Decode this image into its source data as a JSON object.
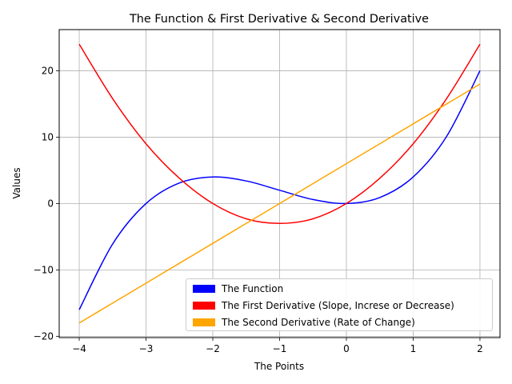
{
  "chart_data": {
    "type": "line",
    "title": "The Function & First Derivative & Second Derivative",
    "xlabel": "The Points",
    "ylabel": "Values",
    "xlim": [
      -4.3,
      2.3
    ],
    "ylim": [
      -20.2,
      26.2
    ],
    "x_ticks": [
      -4,
      -3,
      -2,
      -1,
      0,
      1,
      2
    ],
    "x_tick_labels": [
      "−4",
      "−3",
      "−2",
      "−1",
      "0",
      "1",
      "2"
    ],
    "y_ticks": [
      -20,
      -10,
      0,
      10,
      20
    ],
    "y_tick_labels": [
      "−20",
      "−10",
      "0",
      "10",
      "20"
    ],
    "grid": true,
    "legend_position": "lower-right",
    "x": [
      -4,
      -3.5,
      -3,
      -2.5,
      -2,
      -1.5,
      -1,
      -0.5,
      0,
      0.5,
      1,
      1.5,
      2
    ],
    "series": [
      {
        "name": "The Function",
        "color": "#0000ff",
        "values": [
          -16,
          -6.1,
          0,
          3.1,
          4,
          3.4,
          2,
          0.6,
          0,
          0.9,
          4,
          10.1,
          20
        ]
      },
      {
        "name": "The First Derivative (Slope, Increse or Decrease)",
        "color": "#ff0000",
        "values": [
          24,
          15.8,
          9,
          3.8,
          0,
          -2.3,
          -3,
          -2.3,
          0,
          3.8,
          9,
          15.8,
          24
        ]
      },
      {
        "name": "The Second Derivative (Rate of Change)",
        "color": "#ffa500",
        "values": [
          -18,
          -15,
          -12,
          -9,
          -6,
          -3,
          0,
          3,
          6,
          9,
          12,
          15,
          18
        ]
      }
    ]
  }
}
